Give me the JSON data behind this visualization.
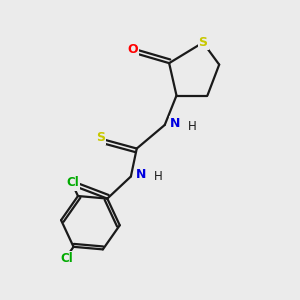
{
  "background_color": "#ebebeb",
  "bond_color": "#1a1a1a",
  "atom_colors": {
    "S": "#c8c800",
    "O": "#ff0000",
    "N": "#0000e0",
    "Cl": "#00aa00"
  },
  "figsize": [
    3.0,
    3.0
  ],
  "dpi": 100
}
